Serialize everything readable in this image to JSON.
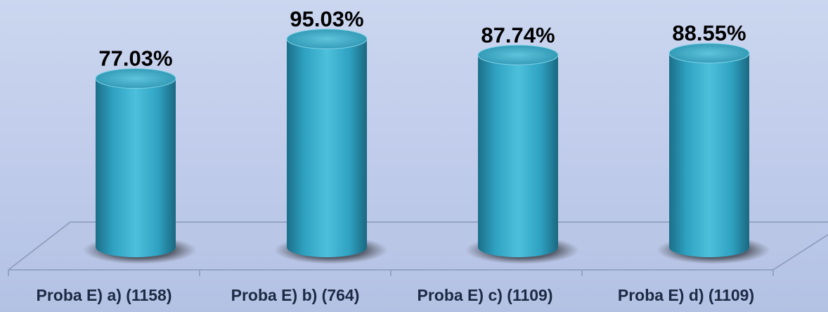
{
  "chart_data": {
    "type": "bar",
    "style": "3d-cylinder",
    "categories": [
      "Proba E) a) (1158)",
      "Proba E) b) (764)",
      "Proba E) c) (1109)",
      "Proba E) d) (1109)"
    ],
    "values": [
      77.03,
      95.03,
      87.74,
      88.55
    ],
    "value_labels": [
      "77.03%",
      "95.03%",
      "87.74%",
      "88.55%"
    ],
    "ylim": [
      0,
      100
    ],
    "grid": false,
    "legend": "none",
    "colors": {
      "bar": "#3ab5d2",
      "bar_dark": "#1b6f89",
      "bar_light": "#7fd3e7",
      "background": "#c4d0ec",
      "floor_line": "#8a98b8"
    }
  }
}
